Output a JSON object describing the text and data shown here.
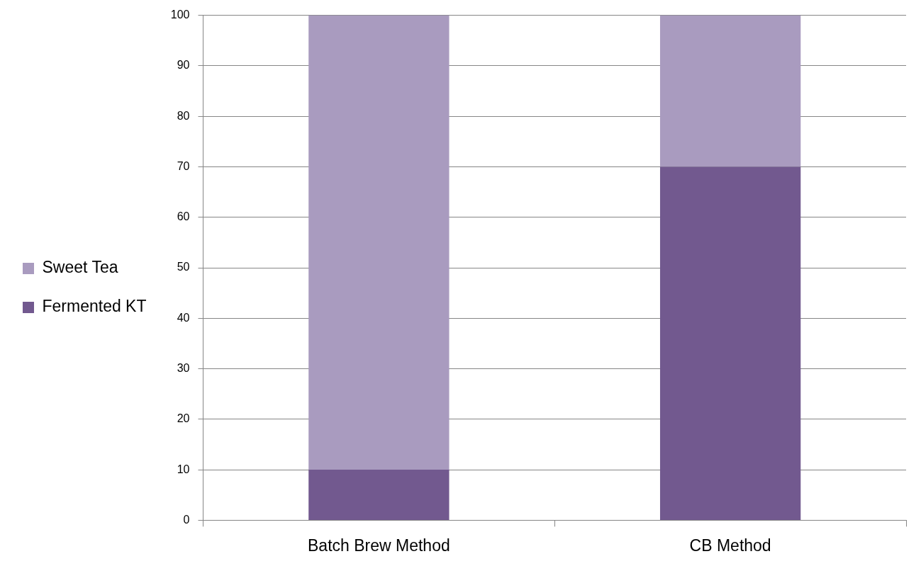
{
  "chart_data": {
    "type": "bar",
    "stacked": true,
    "categories": [
      "Batch Brew Method",
      "CB Method"
    ],
    "series": [
      {
        "name": "Fermented KT",
        "color": "#72598f",
        "values": [
          10,
          70
        ]
      },
      {
        "name": "Sweet Tea",
        "color": "#a99bbf",
        "values": [
          90,
          30
        ]
      }
    ],
    "ylim": [
      0,
      100
    ],
    "yticks": [
      0,
      10,
      20,
      30,
      40,
      50,
      60,
      70,
      80,
      90,
      100
    ],
    "grid": "y",
    "legend": "left"
  }
}
